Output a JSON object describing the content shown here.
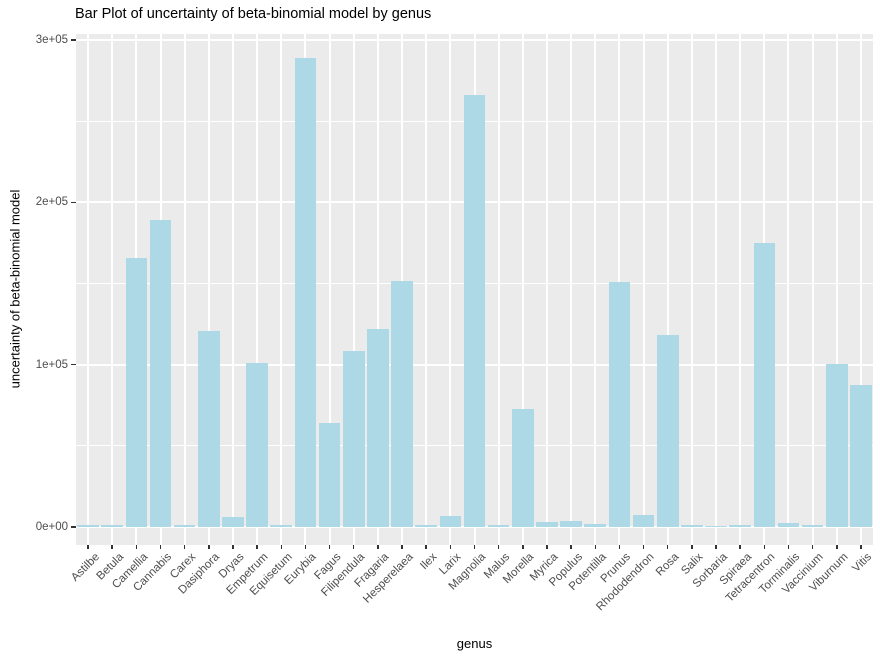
{
  "chart_data": {
    "type": "bar",
    "title": "Bar Plot of uncertainty of beta-binomial model by genus",
    "xlabel": "genus",
    "ylabel": "uncertainty of beta-binomial model",
    "categories": [
      "Astilbe",
      "Betula",
      "Camellia",
      "Cannabis",
      "Carex",
      "Dasiphora",
      "Dryas",
      "Empetrum",
      "Equisetum",
      "Eurybia",
      "Fagus",
      "Filipendula",
      "Fragaria",
      "Hesperelaea",
      "Ilex",
      "Larix",
      "Magnolia",
      "Malus",
      "Morella",
      "Myrica",
      "Populus",
      "Potentilla",
      "Prunus",
      "Rhododendron",
      "Rosa",
      "Salix",
      "Sorbaria",
      "Spiraea",
      "Tetracentron",
      "Torminalis",
      "Vaccinium",
      "Viburnum",
      "Vitis"
    ],
    "values": [
      1500,
      1000,
      166000,
      189000,
      1500,
      121000,
      6300,
      101000,
      1000,
      289000,
      64000,
      108500,
      122000,
      151500,
      1500,
      7000,
      266000,
      1000,
      72500,
      3000,
      3500,
      1700,
      151000,
      7200,
      118000,
      1400,
      700,
      1100,
      175000,
      2300,
      1400,
      100500,
      87500
    ],
    "ylim": [
      0,
      300000
    ],
    "y_ticks": [
      {
        "v": 0,
        "label": "0e+00"
      },
      {
        "v": 100000,
        "label": "1e+05"
      },
      {
        "v": 200000,
        "label": "2e+05"
      },
      {
        "v": 300000,
        "label": "3e+05"
      }
    ],
    "y_minor": [
      50000,
      150000,
      250000
    ],
    "grid": "white major+minor horizontal, white vertical at each category, on gray panel",
    "legend": "none",
    "colors": {
      "bar_fill": "#ADD8E6",
      "panel_bg": "#EBEBEB",
      "gridline": "#FFFFFF",
      "tick_label": "#4D4D4D",
      "tick_mark": "#333333",
      "title_text": "#000000"
    }
  }
}
